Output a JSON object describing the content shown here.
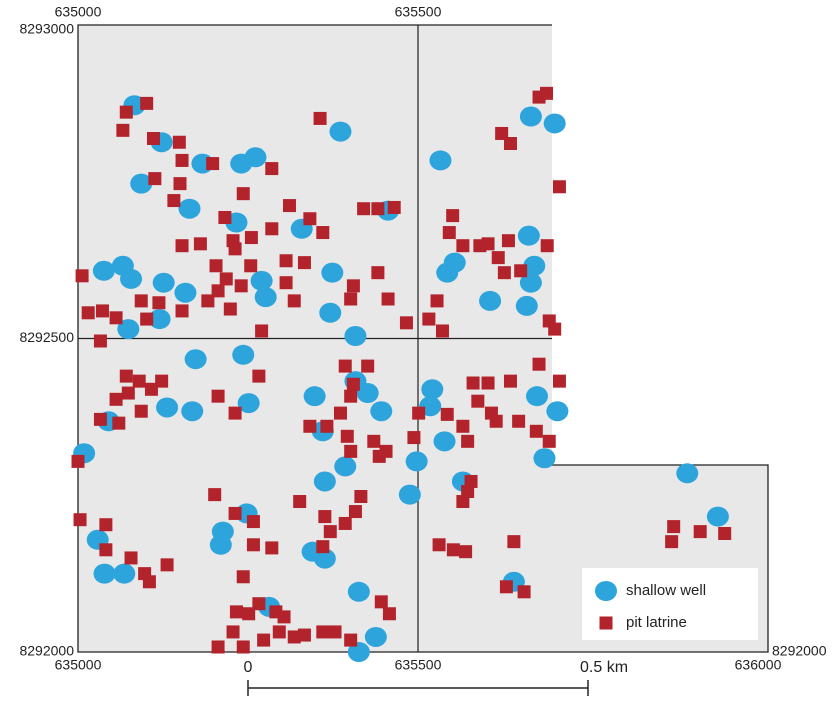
{
  "chart_data": {
    "type": "scatter",
    "xlim": [
      635000,
      636000
    ],
    "ylim": [
      8292000,
      8293000
    ],
    "xticks": [
      635000,
      635500,
      636000
    ],
    "yticks": [
      8292000,
      8292500,
      8293000
    ],
    "grid": true,
    "legend": "lower right",
    "series": [
      {
        "name": "shallow well",
        "color": "#2ea4dc",
        "marker": "circle",
        "x": [
          635083,
          635123,
          635093,
          635164,
          635183,
          635240,
          635261,
          635233,
          635329,
          635386,
          635456,
          635038,
          635066,
          635078,
          635126,
          635158,
          635120,
          635074,
          635270,
          635276,
          635374,
          635371,
          635408,
          635533,
          635554,
          635543,
          635606,
          635663,
          635671,
          635666,
          635660,
          635666,
          635701,
          635243,
          635173,
          635131,
          635168,
          635251,
          635348,
          635408,
          635426,
          635446,
          635360,
          635521,
          635518,
          635539,
          635498,
          635393,
          635363,
          635488,
          635566,
          635675,
          635686,
          635896,
          635941,
          635009,
          635045,
          635029,
          635039,
          635068,
          635213,
          635210,
          635248,
          635345,
          635363,
          635413,
          635438,
          635413,
          635281,
          635641,
          635705
        ],
        "y": [
          8292872,
          8292813,
          8292747,
          8292707,
          8292779,
          8292779,
          8292789,
          8292685,
          8292675,
          8292830,
          8292704,
          8292608,
          8292616,
          8292595,
          8292589,
          8292573,
          8292531,
          8292515,
          8292592,
          8292566,
          8292605,
          8292541,
          8292504,
          8292784,
          8292621,
          8292605,
          8292560,
          8292664,
          8292616,
          8292589,
          8292552,
          8292854,
          8292843,
          8292474,
          8292467,
          8292390,
          8292384,
          8292397,
          8292408,
          8292432,
          8292413,
          8292384,
          8292352,
          8292419,
          8292392,
          8292336,
          8292304,
          8292296,
          8292272,
          8292251,
          8292272,
          8292408,
          8292309,
          8292285,
          8292216,
          8292317,
          8292368,
          8292179,
          8292125,
          8292125,
          8292192,
          8292171,
          8292221,
          8292160,
          8292149,
          8292096,
          8292024,
          8292000,
          8292072,
          8292112,
          8292384
        ]
      },
      {
        "name": "pit latrine",
        "color": "#b3232c",
        "marker": "square",
        "x": [
          635101,
          635071,
          635066,
          635111,
          635149,
          635153,
          635113,
          635150,
          635141,
          635198,
          635216,
          635243,
          635255,
          635228,
          635285,
          635285,
          635311,
          635341,
          635360,
          635356,
          635420,
          635441,
          635465,
          635153,
          635180,
          635231,
          635203,
          635218,
          635206,
          635240,
          635254,
          635306,
          635333,
          635306,
          635006,
          635015,
          635036,
          635056,
          635033,
          635093,
          635101,
          635119,
          635153,
          635191,
          635224,
          635270,
          635318,
          635401,
          635405,
          635441,
          635456,
          635483,
          635516,
          635536,
          635623,
          635636,
          635678,
          635689,
          635708,
          635551,
          635546,
          635566,
          635591,
          635603,
          635633,
          635618,
          635690,
          635627,
          635651,
          635693,
          635701,
          635528,
          635071,
          635090,
          635123,
          635074,
          635108,
          635056,
          635033,
          635060,
          635000,
          635266,
          635206,
          635231,
          635093,
          635003,
          635041,
          635041,
          635078,
          635098,
          635105,
          635131,
          635201,
          635231,
          635258,
          635258,
          635285,
          635243,
          635233,
          635251,
          635266,
          635296,
          635291,
          635303,
          635228,
          635206,
          635243,
          635273,
          635318,
          635333,
          635360,
          635378,
          635401,
          635326,
          635363,
          635371,
          635360,
          635393,
          635408,
          635416,
          635453,
          635443,
          635435,
          635401,
          635396,
          635366,
          635341,
          635386,
          635401,
          635405,
          635393,
          635426,
          635494,
          635501,
          635458,
          635446,
          635581,
          635603,
          635636,
          635608,
          635588,
          635566,
          635543,
          635573,
          635615,
          635648,
          635674,
          635693,
          635566,
          635573,
          635578,
          635641,
          635656,
          635630,
          635531,
          635552,
          635570,
          635876,
          635873,
          635915,
          635951,
          635678,
          635708
        ],
        "y": [
          8292875,
          8292861,
          8292832,
          8292819,
          8292813,
          8292784,
          8292755,
          8292747,
          8292720,
          8292779,
          8292693,
          8292731,
          8292661,
          8292656,
          8292771,
          8292675,
          8292712,
          8292691,
          8292669,
          8292851,
          8292707,
          8292707,
          8292709,
          8292648,
          8292651,
          8292643,
          8292616,
          8292595,
          8292576,
          8292584,
          8292616,
          8292624,
          8292621,
          8292589,
          8292600,
          8292541,
          8292544,
          8292533,
          8292496,
          8292560,
          8292531,
          8292557,
          8292544,
          8292560,
          8292547,
          8292512,
          8292560,
          8292563,
          8292584,
          8292605,
          8292563,
          8292525,
          8292531,
          8292512,
          8292827,
          8292811,
          8292885,
          8292891,
          8292742,
          8292696,
          8292669,
          8292648,
          8292648,
          8292651,
          8292656,
          8292629,
          8292648,
          8292605,
          8292608,
          8292528,
          8292515,
          8292560,
          8292440,
          8292432,
          8292432,
          8292413,
          8292419,
          8292403,
          8292371,
          8292365,
          8292304,
          8292440,
          8292408,
          8292381,
          8292384,
          8292211,
          8292203,
          8292163,
          8292150,
          8292125,
          8292112,
          8292139,
          8292251,
          8292221,
          8292208,
          8292171,
          8292166,
          8292120,
          8292064,
          8292061,
          8292077,
          8292032,
          8292064,
          8292056,
          8292032,
          8292008,
          8292008,
          8292019,
          8292024,
          8292027,
          8292032,
          8292032,
          8292019,
          8292240,
          8292216,
          8292192,
          8292168,
          8292205,
          8292224,
          8292248,
          8292320,
          8292312,
          8292336,
          8292320,
          8292344,
          8292360,
          8292360,
          8292381,
          8292408,
          8292427,
          8292456,
          8292456,
          8292342,
          8292381,
          8292061,
          8292080,
          8292429,
          8292429,
          8292432,
          8292381,
          8292400,
          8292360,
          8292379,
          8292336,
          8292368,
          8292368,
          8292352,
          8292336,
          8292240,
          8292256,
          8292272,
          8292176,
          8292096,
          8292104,
          8292171,
          8292163,
          8292160,
          8292200,
          8292176,
          8292192,
          8292189,
          8292459,
          8292432
        ]
      }
    ]
  },
  "scale_bar": {
    "start_label": "0",
    "end_label": "0.5 km"
  }
}
